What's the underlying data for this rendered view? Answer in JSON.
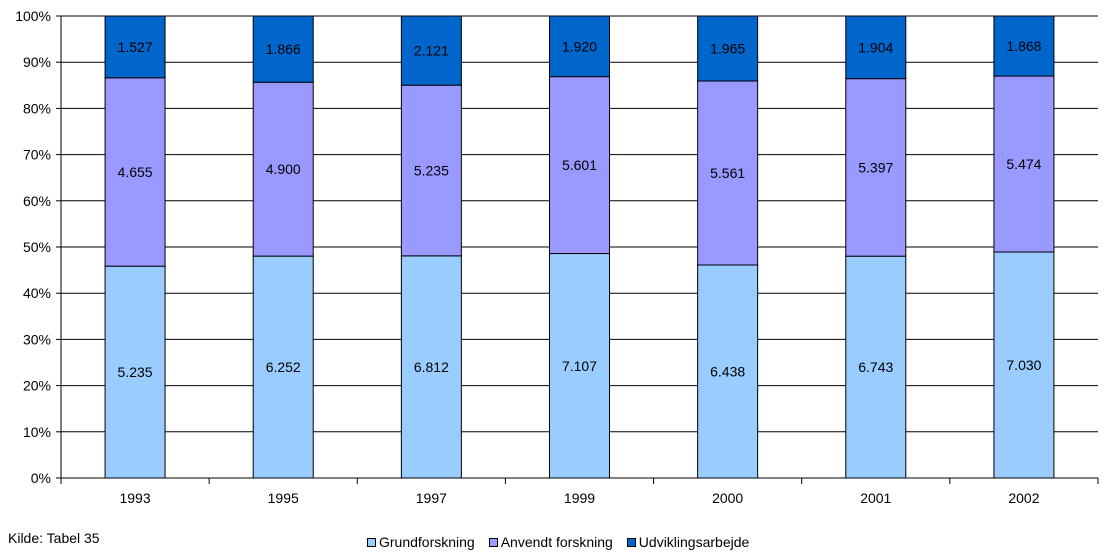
{
  "chart_data": {
    "type": "bar",
    "stacked": "percent",
    "categories": [
      "1993",
      "1995",
      "1997",
      "1999",
      "2000",
      "2001",
      "2002"
    ],
    "series": [
      {
        "name": "Grundforskning",
        "color": "#99ccff",
        "values": [
          5235,
          6252,
          6812,
          7107,
          6438,
          6743,
          7030
        ],
        "labels": [
          "5.235",
          "6.252",
          "6.812",
          "7.107",
          "6.438",
          "6.743",
          "7.030"
        ]
      },
      {
        "name": "Anvendt forskning",
        "color": "#9999ff",
        "values": [
          4655,
          4900,
          5235,
          5601,
          5561,
          5397,
          5474
        ],
        "labels": [
          "4.655",
          "4.900",
          "5.235",
          "5.601",
          "5.561",
          "5.397",
          "5.474"
        ]
      },
      {
        "name": "Udviklingsarbejde",
        "color": "#0066cc",
        "values": [
          1527,
          1866,
          2121,
          1920,
          1965,
          1904,
          1868
        ],
        "labels": [
          "1.527",
          "1.866",
          "2.121",
          "1.920",
          "1.965",
          "1.904",
          "1.868"
        ]
      }
    ],
    "y_ticks": [
      "0%",
      "10%",
      "20%",
      "30%",
      "40%",
      "50%",
      "60%",
      "70%",
      "80%",
      "90%",
      "100%"
    ],
    "ylim": [
      0,
      100
    ],
    "grid": true,
    "legend_position": "bottom"
  },
  "source_note": "Kilde: Tabel 35"
}
